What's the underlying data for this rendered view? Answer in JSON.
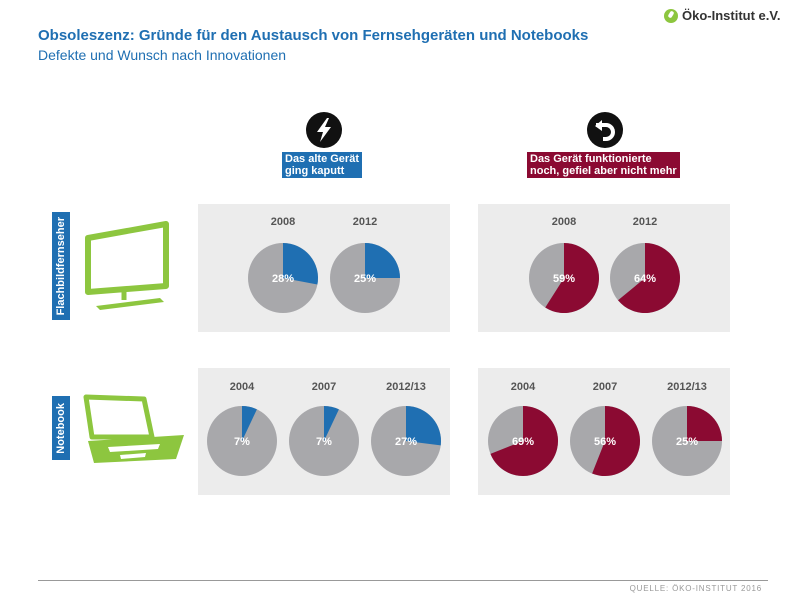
{
  "header": {
    "title": "Obsoleszenz: Gründe für den Austausch von Fernsehgeräten und Notebooks",
    "subtitle": "Defekte und Wunsch nach Innovationen",
    "logo_text": "Öko-Institut e.V."
  },
  "categories": {
    "defect": {
      "label_line1": "Das alte Gerät",
      "label_line2": "ging kaputt",
      "color": "#1f6fb2"
    },
    "innovation": {
      "label_line1": "Das Gerät funktionierte",
      "label_line2": "noch, gefiel aber nicht mehr",
      "color": "#8b0a32"
    }
  },
  "rows": {
    "tv": "Flachbildfernseher",
    "notebook": "Notebook"
  },
  "colors": {
    "gray": "#a8a8ab",
    "green": "#8dc63f",
    "panel": "#ececec"
  },
  "chart_data": [
    {
      "type": "pie",
      "title": "Flachbildfernseher – Das alte Gerät ging kaputt",
      "categories": [
        "2008",
        "2012"
      ],
      "values": [
        28,
        25
      ],
      "unit": "%",
      "color": "#1f6fb2"
    },
    {
      "type": "pie",
      "title": "Flachbildfernseher – Das Gerät funktionierte noch, gefiel aber nicht mehr",
      "categories": [
        "2008",
        "2012"
      ],
      "values": [
        59,
        64
      ],
      "unit": "%",
      "color": "#8b0a32"
    },
    {
      "type": "pie",
      "title": "Notebook – Das alte Gerät ging kaputt",
      "categories": [
        "2004",
        "2007",
        "2012/13"
      ],
      "values": [
        7,
        7,
        27
      ],
      "unit": "%",
      "color": "#1f6fb2"
    },
    {
      "type": "pie",
      "title": "Notebook – Das Gerät funktionierte noch, gefiel aber nicht mehr",
      "categories": [
        "2004",
        "2007",
        "2012/13"
      ],
      "values": [
        69,
        56,
        25
      ],
      "unit": "%",
      "color": "#8b0a32"
    }
  ],
  "footer": {
    "source": "QUELLE: ÖKO-INSTITUT 2016"
  }
}
